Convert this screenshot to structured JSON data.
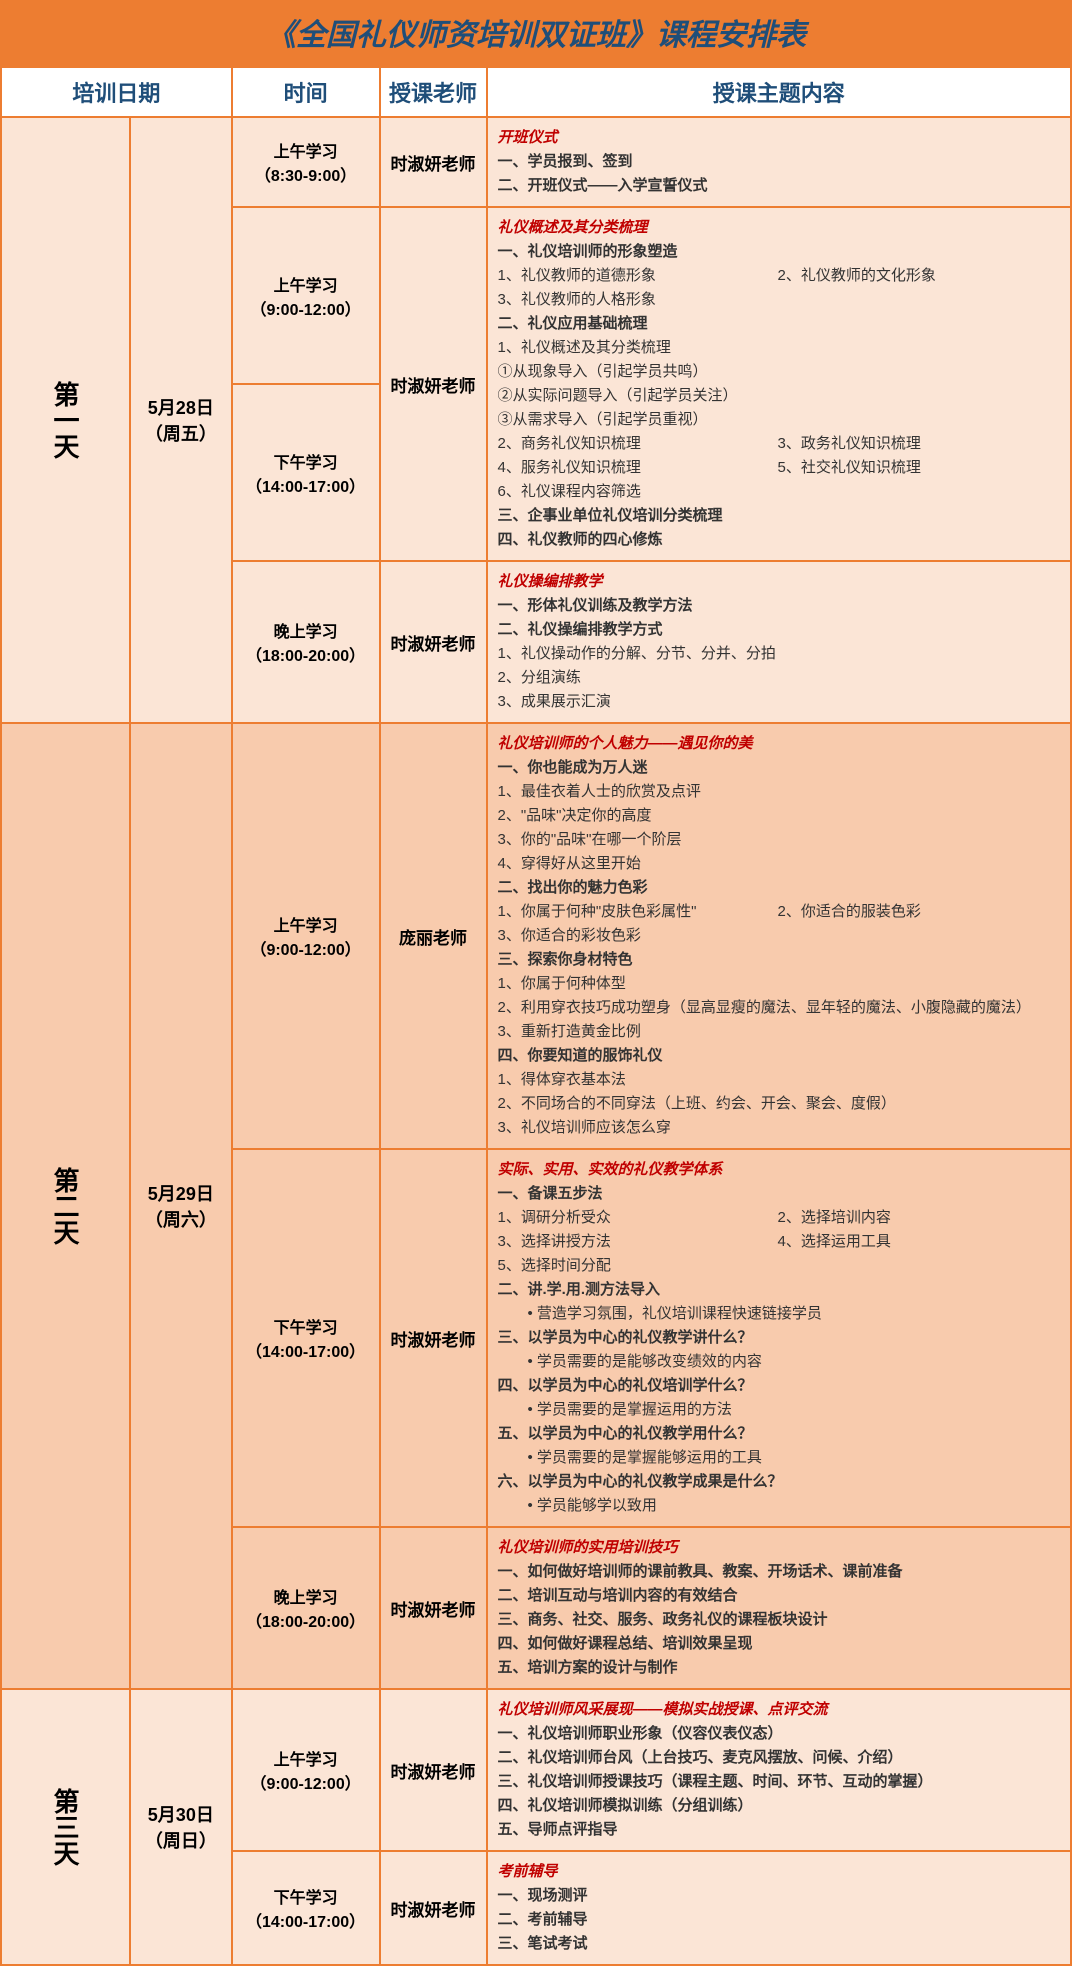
{
  "title": "《全国礼仪师资培训双证班》课程安排表",
  "headers": [
    "培训日期",
    "时间",
    "授课老师",
    "授课主题内容"
  ],
  "colors": {
    "frame": "#ed7d31",
    "titleText": "#1f4e79",
    "topicText": "#c00000",
    "bgLight": "#fbe5d6",
    "bgDark": "#f8cbad"
  },
  "days": [
    {
      "dayLabel": "第一天",
      "date": "5月28日",
      "weekday": "（周五）",
      "bg": "bg1",
      "sessions": [
        {
          "time": "上午学习",
          "timeRange": "（8:30-9:00）",
          "teacher": "时淑妍老师",
          "topic": "开班仪式",
          "lines": [
            {
              "t": "s",
              "x": "一、学员报到、签到"
            },
            {
              "t": "s",
              "x": "二、开班仪式——入学宣誓仪式"
            }
          ]
        },
        {
          "time": "上午学习",
          "timeRange": "（9:00-12:00）",
          "teacher": "时淑妍老师",
          "teacherSpan": 2,
          "topic": "礼仪概述及其分类梳理",
          "contentSpan": 2,
          "lines": [
            {
              "t": "s",
              "x": "一、礼仪培训师的形象塑造"
            },
            {
              "t": "2",
              "a": "1、礼仪教师的道德形象",
              "b": "2、礼仪教师的文化形象"
            },
            {
              "t": "i",
              "x": "3、礼仪教师的人格形象"
            },
            {
              "t": "s",
              "x": "二、礼仪应用基础梳理"
            },
            {
              "t": "i",
              "x": "1、礼仪概述及其分类梳理"
            },
            {
              "t": "i",
              "x": "①从现象导入（引起学员共鸣）"
            },
            {
              "t": "i",
              "x": "②从实际问题导入（引起学员关注）"
            },
            {
              "t": "i",
              "x": "③从需求导入（引起学员重视）"
            },
            {
              "t": "2",
              "a": "2、商务礼仪知识梳理",
              "b": "3、政务礼仪知识梳理"
            },
            {
              "t": "2",
              "a": "4、服务礼仪知识梳理",
              "b": "5、社交礼仪知识梳理"
            },
            {
              "t": "i",
              "x": "6、礼仪课程内容筛选"
            },
            {
              "t": "s",
              "x": "三、企事业单位礼仪培训分类梳理"
            },
            {
              "t": "s",
              "x": "四、礼仪教师的四心修炼"
            }
          ]
        },
        {
          "time": "下午学习",
          "timeRange": "（14:00-17:00）"
        },
        {
          "time": "晚上学习",
          "timeRange": "（18:00-20:00）",
          "teacher": "时淑妍老师",
          "topic": "礼仪操编排教学",
          "lines": [
            {
              "t": "s",
              "x": "一、形体礼仪训练及教学方法"
            },
            {
              "t": "s",
              "x": "二、礼仪操编排教学方式"
            },
            {
              "t": "i",
              "x": "1、礼仪操动作的分解、分节、分并、分拍"
            },
            {
              "t": "i",
              "x": "2、分组演练"
            },
            {
              "t": "i",
              "x": "3、成果展示汇演"
            }
          ]
        }
      ]
    },
    {
      "dayLabel": "第二天",
      "date": "5月29日",
      "weekday": "（周六）",
      "bg": "bg2",
      "sessions": [
        {
          "time": "上午学习",
          "timeRange": "（9:00-12:00）",
          "teacher": "庞丽老师",
          "topic": "礼仪培训师的个人魅力——遇见你的美",
          "lines": [
            {
              "t": "s",
              "x": "一、你也能成为万人迷"
            },
            {
              "t": "i",
              "x": "1、最佳衣着人士的欣赏及点评"
            },
            {
              "t": "i",
              "x": "2、\"品味\"决定你的高度"
            },
            {
              "t": "i",
              "x": "3、你的\"品味\"在哪一个阶层"
            },
            {
              "t": "i",
              "x": "4、穿得好从这里开始"
            },
            {
              "t": "s",
              "x": "二、找出你的魅力色彩"
            },
            {
              "t": "2",
              "a": "1、你属于何种\"皮肤色彩属性\"",
              "b": "2、你适合的服装色彩"
            },
            {
              "t": "i",
              "x": "3、你适合的彩妆色彩"
            },
            {
              "t": "s",
              "x": "三、探索你身材特色"
            },
            {
              "t": "i",
              "x": "1、你属于何种体型"
            },
            {
              "t": "i",
              "x": "2、利用穿衣技巧成功塑身（显高显瘦的魔法、显年轻的魔法、小腹隐藏的魔法）"
            },
            {
              "t": "i",
              "x": "3、重新打造黄金比例"
            },
            {
              "t": "s",
              "x": "四、你要知道的服饰礼仪"
            },
            {
              "t": "i",
              "x": "1、得体穿衣基本法"
            },
            {
              "t": "i",
              "x": "2、不同场合的不同穿法（上班、约会、开会、聚会、度假）"
            },
            {
              "t": "i",
              "x": "3、礼仪培训师应该怎么穿"
            }
          ]
        },
        {
          "time": "下午学习",
          "timeRange": "（14:00-17:00）",
          "teacher": "时淑妍老师",
          "topic": "实际、实用、实效的礼仪教学体系",
          "lines": [
            {
              "t": "s",
              "x": "一、备课五步法"
            },
            {
              "t": "2",
              "a": "1、调研分析受众",
              "b": "2、选择培训内容"
            },
            {
              "t": "2",
              "a": "3、选择讲授方法",
              "b": "4、选择运用工具"
            },
            {
              "t": "i",
              "x": "5、选择时间分配"
            },
            {
              "t": "s",
              "x": "二、讲.学.用.测方法导入"
            },
            {
              "t": "d",
              "x": "• 营造学习氛围，礼仪培训课程快速链接学员"
            },
            {
              "t": "s",
              "x": "三、以学员为中心的礼仪教学讲什么？"
            },
            {
              "t": "d",
              "x": "• 学员需要的是能够改变绩效的内容"
            },
            {
              "t": "s",
              "x": "四、以学员为中心的礼仪培训学什么？"
            },
            {
              "t": "d",
              "x": "• 学员需要的是掌握运用的方法"
            },
            {
              "t": "s",
              "x": "五、以学员为中心的礼仪教学用什么？"
            },
            {
              "t": "d",
              "x": "• 学员需要的是掌握能够运用的工具"
            },
            {
              "t": "s",
              "x": "六、以学员为中心的礼仪教学成果是什么？"
            },
            {
              "t": "d",
              "x": "• 学员能够学以致用"
            }
          ]
        },
        {
          "time": "晚上学习",
          "timeRange": "（18:00-20:00）",
          "teacher": "时淑妍老师",
          "topic": "礼仪培训师的实用培训技巧",
          "lines": [
            {
              "t": "s",
              "x": "一、如何做好培训师的课前教具、教案、开场话术、课前准备"
            },
            {
              "t": "s",
              "x": "二、培训互动与培训内容的有效结合"
            },
            {
              "t": "s",
              "x": "三、商务、社交、服务、政务礼仪的课程板块设计"
            },
            {
              "t": "s",
              "x": "四、如何做好课程总结、培训效果呈现"
            },
            {
              "t": "s",
              "x": "五、培训方案的设计与制作"
            }
          ]
        }
      ]
    },
    {
      "dayLabel": "第三天",
      "date": "5月30日",
      "weekday": "（周日）",
      "bg": "bg1",
      "sessions": [
        {
          "time": "上午学习",
          "timeRange": "（9:00-12:00）",
          "teacher": "时淑妍老师",
          "topic": "礼仪培训师风采展现——模拟实战授课、点评交流",
          "lines": [
            {
              "t": "s",
              "x": "一、礼仪培训师职业形象（仪容仪表仪态）"
            },
            {
              "t": "s",
              "x": "二、礼仪培训师台风（上台技巧、麦克风摆放、问候、介绍）"
            },
            {
              "t": "s",
              "x": "三、礼仪培训师授课技巧（课程主题、时间、环节、互动的掌握）"
            },
            {
              "t": "s",
              "x": "四、礼仪培训师模拟训练（分组训练）"
            },
            {
              "t": "s",
              "x": "五、导师点评指导"
            }
          ]
        },
        {
          "time": "下午学习",
          "timeRange": "（14:00-17:00）",
          "teacher": "时淑妍老师",
          "topic": "考前辅导",
          "lines": [
            {
              "t": "s",
              "x": "一、现场测评"
            },
            {
              "t": "s",
              "x": "二、考前辅导"
            },
            {
              "t": "s",
              "x": "三、笔试考试"
            }
          ]
        }
      ]
    }
  ]
}
